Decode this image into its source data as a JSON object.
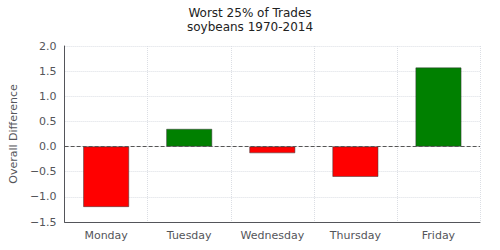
{
  "chart_data": {
    "type": "bar",
    "title": "Worst 25% of Trades",
    "subtitle": "soybeans 1970-2014",
    "ylabel": "Overall Difference",
    "categories": [
      "Monday",
      "Tuesday",
      "Wednesday",
      "Thursday",
      "Friday"
    ],
    "values": [
      -1.2,
      0.35,
      -0.13,
      -0.6,
      1.57
    ],
    "colors": [
      "#ff0000",
      "#008000",
      "#ff0000",
      "#ff0000",
      "#008000"
    ],
    "ylim": [
      -1.5,
      2.0
    ],
    "yticks": [
      {
        "value": -1.5,
        "label": "−1.5"
      },
      {
        "value": -1.0,
        "label": "−1.0"
      },
      {
        "value": -0.5,
        "label": "−0.5"
      },
      {
        "value": 0.0,
        "label": "0.0"
      },
      0.5,
      {
        "value": 1.0,
        "label": "1.0"
      },
      1.5,
      {
        "value": 2.0,
        "label": "2.0"
      }
    ],
    "hline": 0.0,
    "grid": true
  }
}
